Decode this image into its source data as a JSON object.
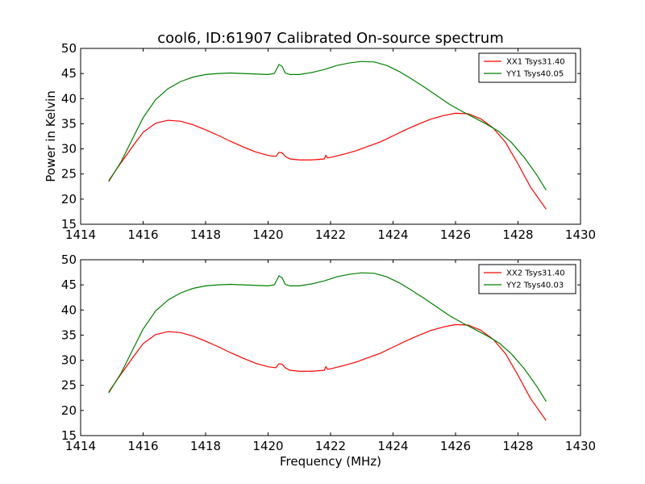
{
  "title": "cool6, ID:61907 Calibrated On-source spectrum",
  "ylabel": "Power in Kelvin",
  "xlabel": "Frequency (MHz)",
  "chart_data": [
    {
      "type": "line",
      "xlim": [
        1414,
        1430
      ],
      "ylim": [
        15,
        50
      ],
      "xticks": [
        1414,
        1416,
        1418,
        1420,
        1422,
        1424,
        1426,
        1428,
        1430
      ],
      "yticks": [
        15,
        20,
        25,
        30,
        35,
        40,
        45,
        50
      ],
      "grid": false,
      "legend_position": "top-right",
      "series": [
        {
          "name": "XX1 Tsys31.40",
          "color": "#ff0000",
          "x": [
            1414.9,
            1415.3,
            1415.7,
            1416.0,
            1416.4,
            1416.8,
            1417.2,
            1417.6,
            1418.0,
            1418.4,
            1418.8,
            1419.2,
            1419.6,
            1420.0,
            1420.25,
            1420.35,
            1420.45,
            1420.55,
            1420.7,
            1421.0,
            1421.4,
            1421.8,
            1421.85,
            1421.9,
            1422.0,
            1422.4,
            1422.8,
            1423.2,
            1423.6,
            1424.0,
            1424.4,
            1424.8,
            1425.2,
            1425.6,
            1426.0,
            1426.4,
            1426.8,
            1427.2,
            1427.6,
            1428.0,
            1428.4,
            1428.9
          ],
          "y": [
            23.7,
            27.3,
            30.8,
            33.3,
            35.1,
            35.7,
            35.5,
            34.8,
            33.8,
            32.7,
            31.5,
            30.4,
            29.4,
            28.7,
            28.5,
            29.3,
            29.2,
            28.5,
            28.0,
            27.8,
            27.8,
            28.0,
            28.7,
            28.2,
            28.3,
            28.9,
            29.6,
            30.5,
            31.4,
            32.6,
            33.8,
            34.9,
            35.9,
            36.6,
            37.1,
            37.0,
            36.0,
            34.2,
            31.3,
            27.0,
            22.4,
            18.0
          ]
        },
        {
          "name": "YY1 Tsys40.05",
          "color": "#008000",
          "x": [
            1414.9,
            1415.3,
            1415.7,
            1416.0,
            1416.4,
            1416.8,
            1417.2,
            1417.6,
            1418.0,
            1418.4,
            1418.8,
            1419.2,
            1419.6,
            1420.0,
            1420.2,
            1420.35,
            1420.45,
            1420.55,
            1420.7,
            1421.0,
            1421.4,
            1421.8,
            1422.2,
            1422.6,
            1423.0,
            1423.4,
            1423.8,
            1424.2,
            1424.6,
            1425.0,
            1425.4,
            1425.8,
            1426.2,
            1426.6,
            1427.0,
            1427.4,
            1427.8,
            1428.2,
            1428.6,
            1428.9
          ],
          "y": [
            23.5,
            27.5,
            32.5,
            36.2,
            39.8,
            42.0,
            43.4,
            44.3,
            44.8,
            45.0,
            45.1,
            45.0,
            44.9,
            44.8,
            45.0,
            46.8,
            46.4,
            45.1,
            44.8,
            44.8,
            45.2,
            45.8,
            46.6,
            47.1,
            47.4,
            47.3,
            46.6,
            45.4,
            43.9,
            42.3,
            40.6,
            38.9,
            37.5,
            36.2,
            34.9,
            33.4,
            31.2,
            28.3,
            24.8,
            21.8
          ]
        }
      ]
    },
    {
      "type": "line",
      "xlim": [
        1414,
        1430
      ],
      "ylim": [
        15,
        50
      ],
      "xticks": [
        1414,
        1416,
        1418,
        1420,
        1422,
        1424,
        1426,
        1428,
        1430
      ],
      "yticks": [
        15,
        20,
        25,
        30,
        35,
        40,
        45,
        50
      ],
      "grid": false,
      "legend_position": "top-right",
      "series": [
        {
          "name": "XX2 Tsys31.40",
          "color": "#ff0000",
          "x": [
            1414.9,
            1415.3,
            1415.7,
            1416.0,
            1416.4,
            1416.8,
            1417.2,
            1417.6,
            1418.0,
            1418.4,
            1418.8,
            1419.2,
            1419.6,
            1420.0,
            1420.25,
            1420.35,
            1420.45,
            1420.55,
            1420.7,
            1421.0,
            1421.4,
            1421.8,
            1421.85,
            1421.9,
            1422.0,
            1422.4,
            1422.8,
            1423.2,
            1423.6,
            1424.0,
            1424.4,
            1424.8,
            1425.2,
            1425.6,
            1426.0,
            1426.4,
            1426.8,
            1427.2,
            1427.6,
            1428.0,
            1428.4,
            1428.9
          ],
          "y": [
            23.7,
            27.3,
            30.8,
            33.3,
            35.1,
            35.7,
            35.5,
            34.8,
            33.8,
            32.7,
            31.5,
            30.4,
            29.4,
            28.7,
            28.5,
            29.3,
            29.2,
            28.5,
            28.0,
            27.8,
            27.8,
            28.0,
            28.7,
            28.2,
            28.3,
            28.9,
            29.6,
            30.5,
            31.4,
            32.6,
            33.8,
            34.9,
            35.9,
            36.6,
            37.1,
            37.0,
            36.0,
            34.2,
            31.3,
            27.0,
            22.4,
            18.0
          ]
        },
        {
          "name": "YY2 Tsys40.03",
          "color": "#008000",
          "x": [
            1414.9,
            1415.3,
            1415.7,
            1416.0,
            1416.4,
            1416.8,
            1417.2,
            1417.6,
            1418.0,
            1418.4,
            1418.8,
            1419.2,
            1419.6,
            1420.0,
            1420.2,
            1420.35,
            1420.45,
            1420.55,
            1420.7,
            1421.0,
            1421.4,
            1421.8,
            1422.2,
            1422.6,
            1423.0,
            1423.4,
            1423.8,
            1424.2,
            1424.6,
            1425.0,
            1425.4,
            1425.8,
            1426.2,
            1426.6,
            1427.0,
            1427.4,
            1427.8,
            1428.2,
            1428.6,
            1428.9
          ],
          "y": [
            23.5,
            27.5,
            32.5,
            36.2,
            39.8,
            42.0,
            43.4,
            44.3,
            44.8,
            45.0,
            45.1,
            45.0,
            44.9,
            44.8,
            45.0,
            46.8,
            46.4,
            45.1,
            44.8,
            44.8,
            45.2,
            45.8,
            46.6,
            47.1,
            47.4,
            47.3,
            46.6,
            45.4,
            43.9,
            42.3,
            40.6,
            38.9,
            37.5,
            36.2,
            34.9,
            33.4,
            31.2,
            28.3,
            24.8,
            21.8
          ]
        }
      ]
    }
  ]
}
